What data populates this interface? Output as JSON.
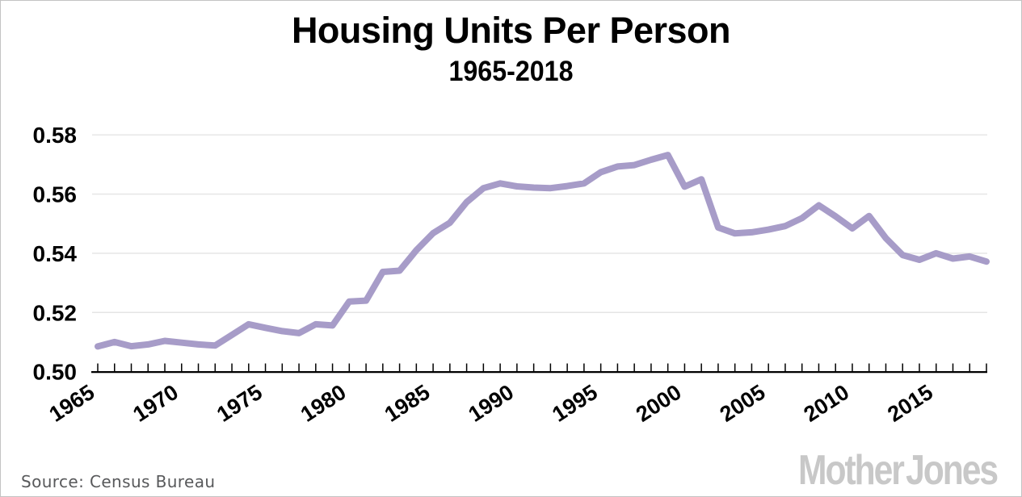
{
  "page": {
    "background": "#ffffff",
    "border_color": "#c3c3c3"
  },
  "header": {
    "title": "Housing Units Per Person",
    "subtitle": "1965-2018"
  },
  "footer": {
    "source_text": "Source: Census Bureau",
    "logo_text": "Mother Jones"
  },
  "chart_data": {
    "type": "line",
    "title": "Housing Units Per Person",
    "subtitle": "1965-2018",
    "xlabel": "",
    "ylabel": "",
    "xlim": [
      1965,
      2018
    ],
    "ylim": [
      0.5,
      0.58
    ],
    "grid": "horizontal",
    "legend": "none",
    "line_color": "#a79cc8",
    "grid_color": "#e4e4e4",
    "axis_color": "#000000",
    "yticks": [
      0.5,
      0.52,
      0.54,
      0.56,
      0.58
    ],
    "ytick_labels": [
      "0.50",
      "0.52",
      "0.54",
      "0.56",
      "0.58"
    ],
    "xtick_years": [
      1965,
      1970,
      1975,
      1980,
      1985,
      1990,
      1995,
      2000,
      2005,
      2010,
      2015
    ],
    "xtick_labels": [
      "1965",
      "1970",
      "1975",
      "1980",
      "1985",
      "1990",
      "1995",
      "2000",
      "2005",
      "2010",
      "2015"
    ],
    "x": [
      1965,
      1966,
      1967,
      1968,
      1969,
      1970,
      1971,
      1972,
      1973,
      1974,
      1975,
      1976,
      1977,
      1978,
      1979,
      1980,
      1981,
      1982,
      1983,
      1984,
      1985,
      1986,
      1987,
      1988,
      1989,
      1990,
      1991,
      1992,
      1993,
      1994,
      1995,
      1996,
      1997,
      1998,
      1999,
      2000,
      2001,
      2002,
      2003,
      2004,
      2005,
      2006,
      2007,
      2008,
      2009,
      2010,
      2011,
      2012,
      2013,
      2014,
      2015,
      2016,
      2017,
      2018
    ],
    "series": [
      {
        "name": "Housing units per person",
        "values": [
          0.5085,
          0.51,
          0.5086,
          0.5092,
          0.5104,
          0.5098,
          0.5092,
          0.5088,
          0.5124,
          0.516,
          0.5148,
          0.5137,
          0.513,
          0.516,
          0.5156,
          0.5237,
          0.524,
          0.5337,
          0.5341,
          0.541,
          0.5468,
          0.5503,
          0.5573,
          0.562,
          0.5636,
          0.5626,
          0.5622,
          0.562,
          0.5627,
          0.5636,
          0.5674,
          0.5693,
          0.5698,
          0.5716,
          0.5732,
          0.5625,
          0.565,
          0.5487,
          0.5467,
          0.5471,
          0.548,
          0.5492,
          0.5519,
          0.5562,
          0.5525,
          0.5484,
          0.5526,
          0.5451,
          0.5394,
          0.5378,
          0.54,
          0.5382,
          0.5389,
          0.5372
        ]
      }
    ]
  }
}
